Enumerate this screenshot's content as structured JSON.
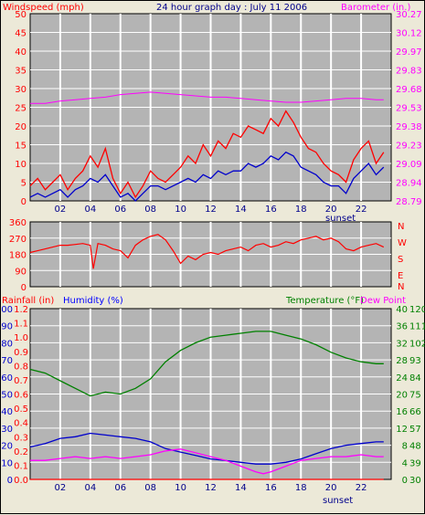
{
  "top": {
    "title": "24 hour graph day : July 11 2006",
    "left_title": "Windspeed (mph)",
    "right_title": "Barometer (in.)",
    "sunset_label": "sunset"
  },
  "middle": {
    "right_labels": [
      "N",
      "W",
      "S",
      "E",
      "N"
    ]
  },
  "bottom": {
    "rain_title": "Rainfall (in)",
    "humidity_title": "Humidity (%)",
    "temp_title": "Temperature (°F)",
    "dew_title": "Dew Point",
    "sunset_label": "sunset"
  },
  "colors": {
    "wind_gust": "#ff0000",
    "wind_avg": "#0000cc",
    "barometer": "#ff00ff",
    "direction": "#ff0000",
    "temperature": "#008000",
    "humidity": "#0000cc",
    "dewpoint": "#ff00ff",
    "rain": "#ff0000"
  },
  "chart_data": [
    {
      "type": "line",
      "title": "24 hour graph day : July 11 2006",
      "xlabel": "",
      "x_ticks": [
        "02",
        "04",
        "06",
        "08",
        "10",
        "12",
        "14",
        "16",
        "18",
        "20",
        "22"
      ],
      "x_range": [
        0,
        24
      ],
      "ylabel": "Windspeed (mph)",
      "ylim": [
        0,
        50
      ],
      "y_ticks": [
        "0",
        "5",
        "10",
        "15",
        "20",
        "25",
        "30",
        "35",
        "40",
        "45",
        "50"
      ],
      "y2label": "Barometer (in.)",
      "y2lim": [
        28.79,
        30.27
      ],
      "y2_ticks": [
        "28.79",
        "28.94",
        "29.09",
        "29.23",
        "29.38",
        "29.53",
        "29.68",
        "29.83",
        "29.97",
        "30.12",
        "30.27"
      ],
      "grid": true,
      "series": [
        {
          "name": "Windspeed (mph)",
          "axis": "left",
          "x": [
            0,
            0.5,
            1,
            1.5,
            2,
            2.5,
            3,
            3.5,
            4,
            4.5,
            5,
            5.5,
            6,
            6.5,
            7,
            7.5,
            8,
            8.5,
            9,
            9.5,
            10,
            10.5,
            11,
            11.5,
            12,
            12.5,
            13,
            13.5,
            14,
            14.5,
            15,
            15.5,
            16,
            16.5,
            17,
            17.5,
            18,
            18.5,
            19,
            19.5,
            20,
            20.5,
            21,
            21.5,
            22,
            22.5,
            23,
            23.5
          ],
          "values": [
            4,
            6,
            3,
            5,
            7,
            3,
            6,
            8,
            12,
            9,
            14,
            6,
            2,
            5,
            1,
            4,
            8,
            6,
            5,
            7,
            9,
            12,
            10,
            15,
            12,
            16,
            14,
            18,
            17,
            20,
            19,
            18,
            22,
            20,
            24,
            21,
            17,
            14,
            13,
            10,
            8,
            7,
            5,
            11,
            14,
            16,
            10,
            13
          ]
        },
        {
          "name": "Wind average",
          "axis": "left",
          "x": [
            0,
            0.5,
            1,
            1.5,
            2,
            2.5,
            3,
            3.5,
            4,
            4.5,
            5,
            5.5,
            6,
            6.5,
            7,
            7.5,
            8,
            8.5,
            9,
            9.5,
            10,
            10.5,
            11,
            11.5,
            12,
            12.5,
            13,
            13.5,
            14,
            14.5,
            15,
            15.5,
            16,
            16.5,
            17,
            17.5,
            18,
            18.5,
            19,
            19.5,
            20,
            20.5,
            21,
            21.5,
            22,
            22.5,
            23,
            23.5
          ],
          "values": [
            1,
            2,
            1,
            2,
            3,
            1,
            3,
            4,
            6,
            5,
            7,
            4,
            1,
            2,
            0,
            2,
            4,
            4,
            3,
            4,
            5,
            6,
            5,
            7,
            6,
            8,
            7,
            8,
            8,
            10,
            9,
            10,
            12,
            11,
            13,
            12,
            9,
            8,
            7,
            5,
            4,
            4,
            2,
            6,
            8,
            10,
            7,
            9
          ]
        },
        {
          "name": "Barometer (in.)",
          "axis": "right",
          "x": [
            0,
            1,
            2,
            3,
            4,
            5,
            6,
            7,
            8,
            9,
            10,
            11,
            12,
            13,
            14,
            15,
            16,
            17,
            18,
            19,
            20,
            21,
            22,
            23,
            23.5
          ],
          "values": [
            29.56,
            29.56,
            29.58,
            29.59,
            29.6,
            29.61,
            29.63,
            29.64,
            29.65,
            29.64,
            29.63,
            29.62,
            29.61,
            29.61,
            29.6,
            29.59,
            29.58,
            29.57,
            29.57,
            29.58,
            29.59,
            29.6,
            29.6,
            29.59,
            29.59
          ]
        }
      ]
    },
    {
      "type": "line",
      "ylabel": "",
      "ylim": [
        0,
        360
      ],
      "y_ticks": [
        "0",
        "90",
        "180",
        "270",
        "360"
      ],
      "x_ticks": [
        "02",
        "04",
        "06",
        "08",
        "10",
        "12",
        "14",
        "16",
        "18",
        "20",
        "22"
      ],
      "x_range": [
        0,
        24
      ],
      "grid": true,
      "series": [
        {
          "name": "Wind direction",
          "x": [
            0,
            0.5,
            1,
            1.5,
            2,
            2.5,
            3,
            3.5,
            4,
            4.2,
            4.5,
            5,
            5.5,
            6,
            6.5,
            7,
            7.5,
            8,
            8.5,
            9,
            9.5,
            10,
            10.5,
            11,
            11.5,
            12,
            12.5,
            13,
            13.5,
            14,
            14.5,
            15,
            15.5,
            16,
            16.5,
            17,
            17.5,
            18,
            18.5,
            19,
            19.5,
            20,
            20.5,
            21,
            21.5,
            22,
            22.5,
            23,
            23.5
          ],
          "values": [
            190,
            200,
            210,
            220,
            230,
            230,
            235,
            240,
            230,
            100,
            240,
            230,
            210,
            200,
            160,
            230,
            260,
            280,
            290,
            260,
            200,
            130,
            170,
            150,
            180,
            190,
            180,
            200,
            210,
            220,
            200,
            230,
            240,
            220,
            230,
            250,
            240,
            260,
            270,
            280,
            260,
            270,
            250,
            210,
            200,
            220,
            230,
            240,
            220
          ]
        }
      ]
    },
    {
      "type": "line",
      "x_ticks": [
        "02",
        "04",
        "06",
        "08",
        "10",
        "12",
        "14",
        "16",
        "18",
        "20",
        "22"
      ],
      "x_range": [
        0,
        24
      ],
      "ylabel": "Rainfall (in) / Humidity (%)",
      "rain_ticks": [
        "0.0",
        "0.1",
        "0.2",
        "0.3",
        "0.4",
        "0.5",
        "0.6",
        "0.7",
        "0.8",
        "0.9",
        "1.0",
        "1.1",
        "1.2"
      ],
      "humidity_ticks": [
        "0",
        "10",
        "20",
        "30",
        "40",
        "50",
        "60",
        "70",
        "80",
        "90",
        "100"
      ],
      "temp_c_ticks": [
        "0",
        "4",
        "8",
        "12",
        "16",
        "20",
        "24",
        "28",
        "32",
        "36",
        "40"
      ],
      "temp_f_ticks": [
        "30",
        "39",
        "48",
        "57",
        "66",
        "75",
        "84",
        "93",
        "102",
        "111",
        "120"
      ],
      "ylim": [
        0,
        100
      ],
      "y2lim": [
        30,
        120
      ],
      "grid": true,
      "series": [
        {
          "name": "Temperature (°F)",
          "axis": "right_f",
          "x": [
            0,
            1,
            2,
            3,
            4,
            5,
            6,
            7,
            8,
            9,
            10,
            11,
            12,
            13,
            14,
            15,
            16,
            17,
            18,
            19,
            20,
            21,
            22,
            23,
            23.5
          ],
          "values": [
            88,
            86,
            82,
            78,
            74,
            76,
            75,
            78,
            83,
            92,
            98,
            102,
            105,
            106,
            107,
            108,
            108,
            106,
            104,
            101,
            97,
            94,
            92,
            91,
            91
          ]
        },
        {
          "name": "Humidity (%)",
          "axis": "left",
          "x": [
            0,
            1,
            2,
            3,
            4,
            5,
            6,
            7,
            8,
            9,
            10,
            11,
            12,
            13,
            14,
            15,
            16,
            17,
            18,
            19,
            20,
            21,
            22,
            23,
            23.5
          ],
          "values": [
            19,
            21,
            24,
            25,
            27,
            26,
            25,
            24,
            22,
            18,
            16,
            14,
            12,
            11,
            10,
            9,
            9,
            10,
            12,
            15,
            18,
            20,
            21,
            22,
            22
          ]
        },
        {
          "name": "Dew Point",
          "axis": "right_f",
          "x": [
            0,
            1,
            2,
            3,
            4,
            5,
            6,
            7,
            8,
            9,
            10,
            11,
            12,
            13,
            14,
            15,
            15.5,
            16,
            17,
            18,
            19,
            20,
            21,
            22,
            23,
            23.5
          ],
          "values": [
            40,
            40,
            41,
            42,
            41,
            42,
            41,
            42,
            43,
            45,
            46,
            44,
            42,
            40,
            37,
            34,
            33,
            34,
            37,
            40,
            41,
            42,
            42,
            43,
            42,
            42
          ]
        },
        {
          "name": "Rainfall (in)",
          "axis": "left_rain",
          "x": [
            0,
            23.5
          ],
          "values": [
            0,
            0
          ]
        }
      ]
    }
  ]
}
